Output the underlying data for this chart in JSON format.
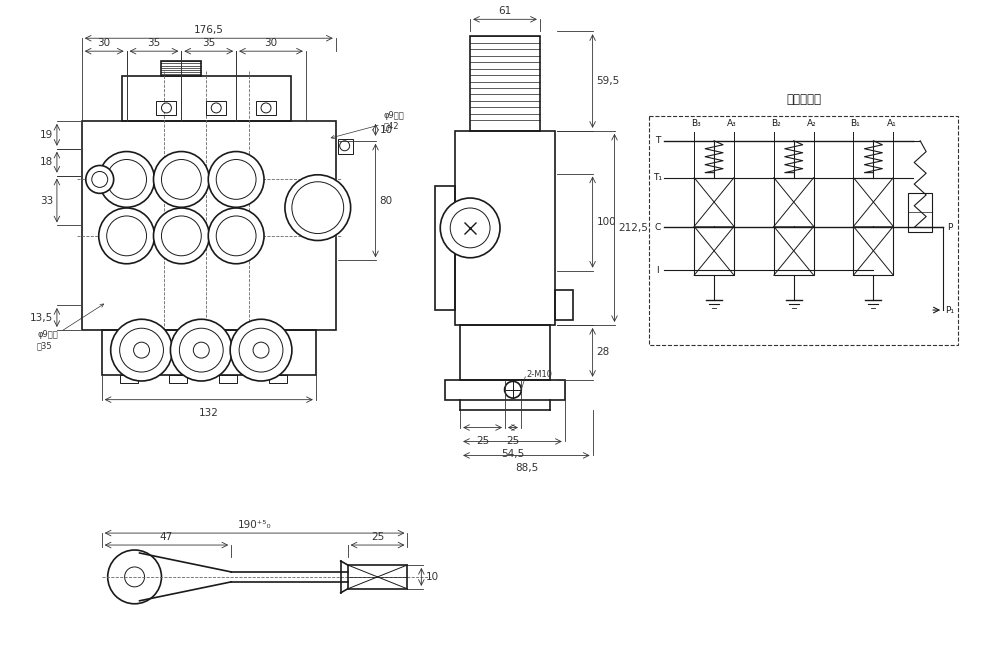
{
  "bg_color": "#ffffff",
  "line_color": "#1a1a1a",
  "dim_color": "#333333",
  "fig_width": 10.0,
  "fig_height": 6.45,
  "dpi": 100,
  "front_view": {
    "dim_176_5": "176,5",
    "dim_30": "30",
    "dim_35": "35",
    "dim_132": "132",
    "dim_19": "19",
    "dim_18": "18",
    "dim_33": "33",
    "dim_13_5": "13,5",
    "dim_80": "80",
    "dim_10": "10",
    "note_phi9_42": "φ9厘孔\n高42",
    "note_phi9_35": "φ9厘孔\n高35"
  },
  "side_view": {
    "dim_61": "61",
    "dim_59_5": "59,5",
    "dim_212_5": "212,5",
    "dim_100": "100",
    "dim_28": "28",
    "dim_25a": "25",
    "dim_25b": "25",
    "dim_54_5": "54,5",
    "dim_88_5": "88,5",
    "note_2m10": "2-M10"
  },
  "schematic": {
    "title": "液压原理图",
    "labels_top": [
      "B₃",
      "A₃",
      "B₂",
      "A₂",
      "B₁",
      "A₁"
    ],
    "labels_left": [
      "T",
      "T₁",
      "C",
      "I"
    ],
    "label_P": "P",
    "label_P1": "P₁"
  },
  "handle_view": {
    "dim_190": "190⁺⁵₀",
    "dim_47": "47",
    "dim_25": "25",
    "dim_10": "10"
  }
}
